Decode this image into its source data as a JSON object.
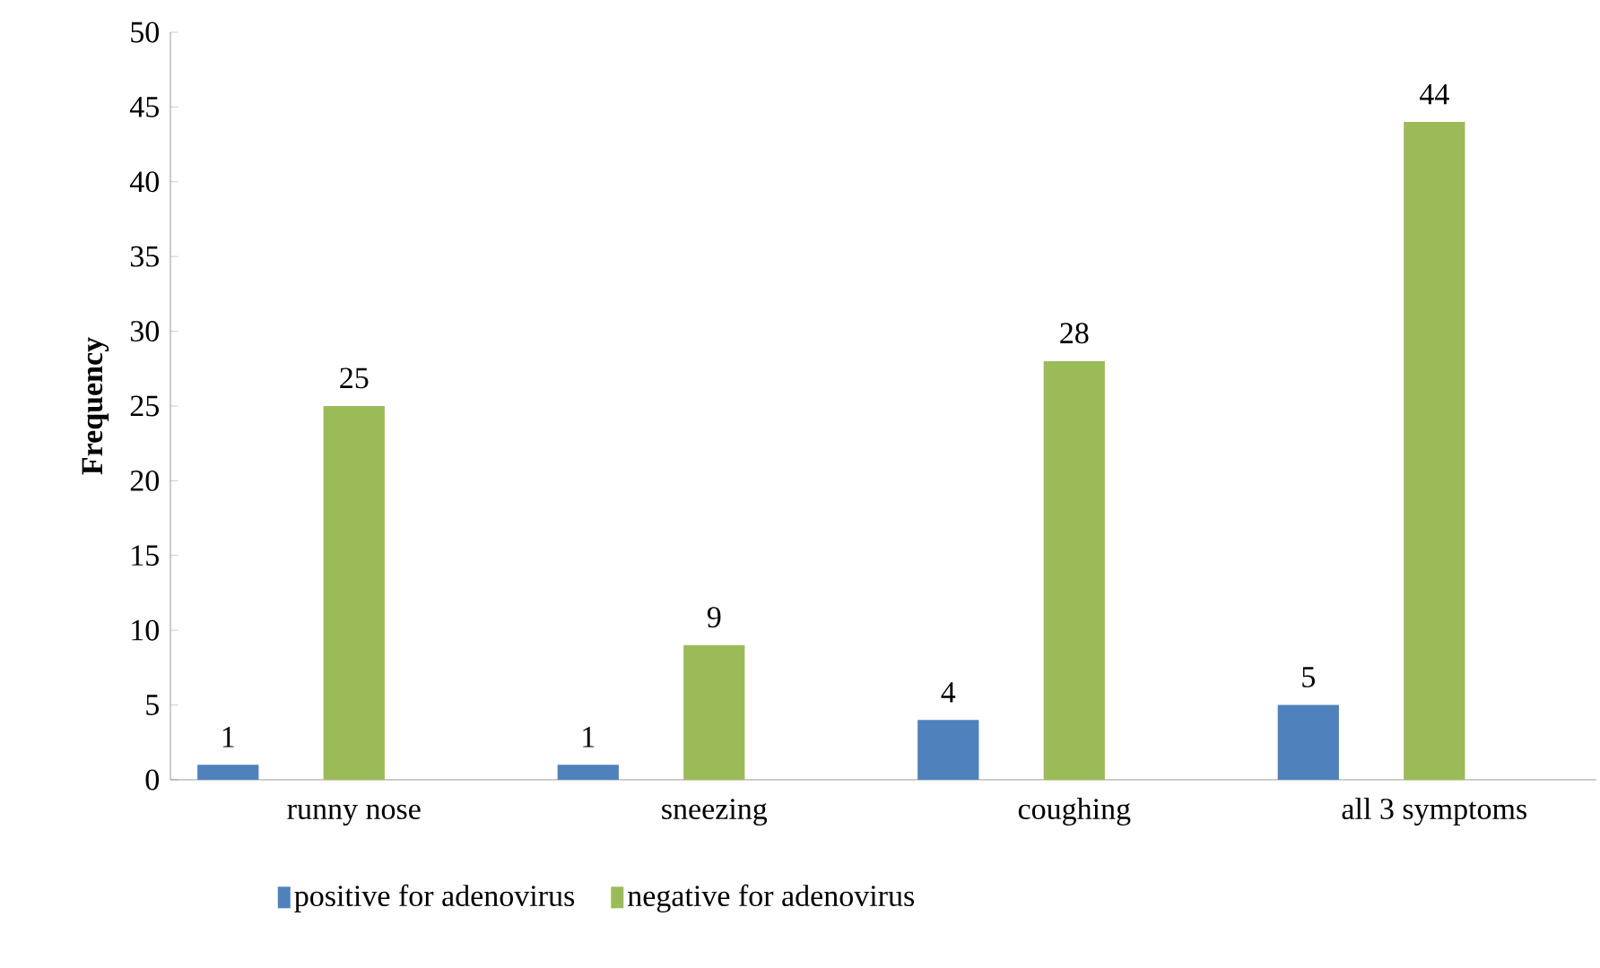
{
  "chart_data": {
    "type": "bar",
    "ylabel": "Frequency",
    "categories": [
      "runny nose",
      "sneezing",
      "coughing",
      "all 3 symptoms"
    ],
    "series": [
      {
        "name": "positive for adenovirus",
        "color": "#4f81bd",
        "values": [
          1,
          1,
          4,
          5
        ]
      },
      {
        "name": "negative for adenovirus",
        "color": "#9bbb59",
        "values": [
          25,
          9,
          28,
          44
        ]
      }
    ],
    "ylim": [
      0,
      50
    ],
    "yticks": [
      0,
      5,
      10,
      15,
      20,
      25,
      30,
      35,
      40,
      45,
      50
    ],
    "data_labels": true,
    "legend": "bottom"
  }
}
